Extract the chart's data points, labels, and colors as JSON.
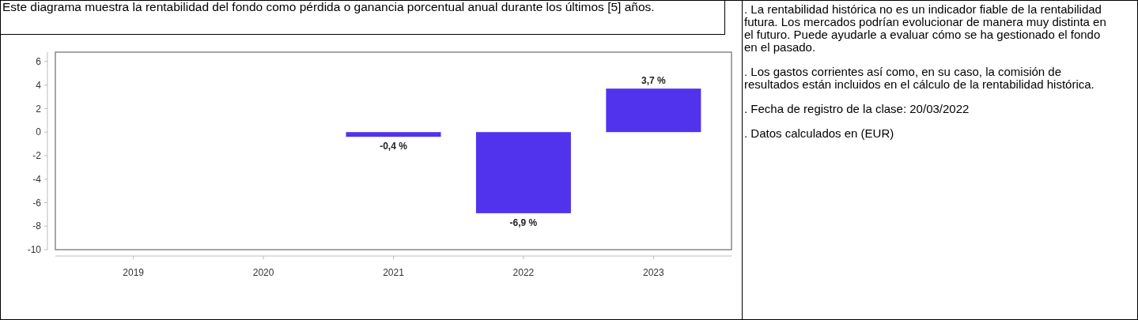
{
  "chart_data": {
    "type": "bar",
    "title": "Este diagrama muestra la rentabilidad del fondo como pérdida o ganancia porcentual anual durante los últimos [5] años.",
    "categories": [
      "2019",
      "2020",
      "2021",
      "2022",
      "2023"
    ],
    "values": [
      null,
      null,
      -0.4,
      -6.9,
      3.7
    ],
    "color": "#5133ee",
    "value_labels": [
      null,
      null,
      "-0,4 %",
      "-6,9 %",
      "3,7 %"
    ],
    "ylim": [
      -10,
      6.8
    ],
    "yticks": [
      -10,
      -8,
      -6,
      -4,
      -2,
      0,
      2,
      4,
      6
    ],
    "grid": false,
    "annotations": [
      ". La rentabilidad histórica no es un indicador fiable de la rentabilidad futura. Los mercados podrían evolucionar de manera muy distinta en el futuro. Puede ayudarle a evaluar cómo se ha gestionado el fondo en el pasado.",
      ". Los gastos corrientes así como, en su caso, la comisión de resultados están incluidos en el cálculo de la rentabilidad histórica.",
      ". Fecha de registro de la clase: 20/03/2022",
      ". Datos calculados en (EUR)"
    ]
  }
}
